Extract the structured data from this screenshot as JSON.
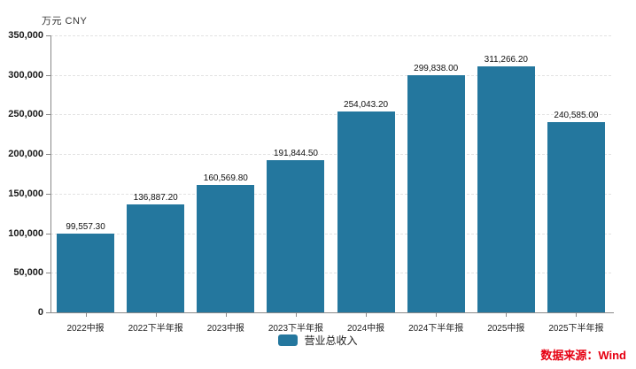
{
  "unit_label": "万元 CNY",
  "legend": {
    "label": "营业总收入",
    "color": "#24779e"
  },
  "source": {
    "label": "数据来源：Wind",
    "color": "#e60012"
  },
  "chart_data": {
    "type": "bar",
    "title": "",
    "xlabel": "",
    "ylabel": "万元 CNY",
    "categories": [
      "2022中报",
      "2022下半年报",
      "2023中报",
      "2023下半年报",
      "2024中报",
      "2024下半年报",
      "2025中报",
      "2025下半年报"
    ],
    "series": [
      {
        "name": "营业总收入",
        "values": [
          99557.3,
          136887.2,
          160569.8,
          191844.5,
          254043.2,
          299838.0,
          311266.2,
          240585.0
        ]
      }
    ],
    "value_labels": [
      "99,557.30",
      "136,887.20",
      "160,569.80",
      "191,844.50",
      "254,043.20",
      "299,838.00",
      "311,266.20",
      "240,585.00"
    ],
    "ylim": [
      0,
      350000
    ],
    "y_tick_step": 50000,
    "y_tick_labels": [
      "0",
      "50,000",
      "100,000",
      "150,000",
      "200,000",
      "250,000",
      "300,000",
      "350,000"
    ],
    "grid": true,
    "grid_style": "dashed",
    "bar_color": "#24779e",
    "axis_color": "#888888",
    "legend_position": "bottom"
  }
}
